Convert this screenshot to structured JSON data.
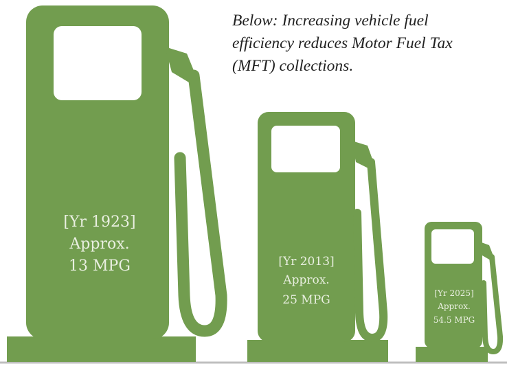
{
  "caption": "Below: Increasing vehicle fuel efficiency reduces Motor Fuel Tax (MFT) collections.",
  "pumps": [
    {
      "year": "[Yr 1923]",
      "label": "Approx.",
      "mpg": "13 MPG"
    },
    {
      "year": "[Yr 2013]",
      "label": "Approx.",
      "mpg": "25 MPG"
    },
    {
      "year": "[Yr 2025]",
      "label": "Approx.",
      "mpg": "54.5 MPG"
    }
  ]
}
